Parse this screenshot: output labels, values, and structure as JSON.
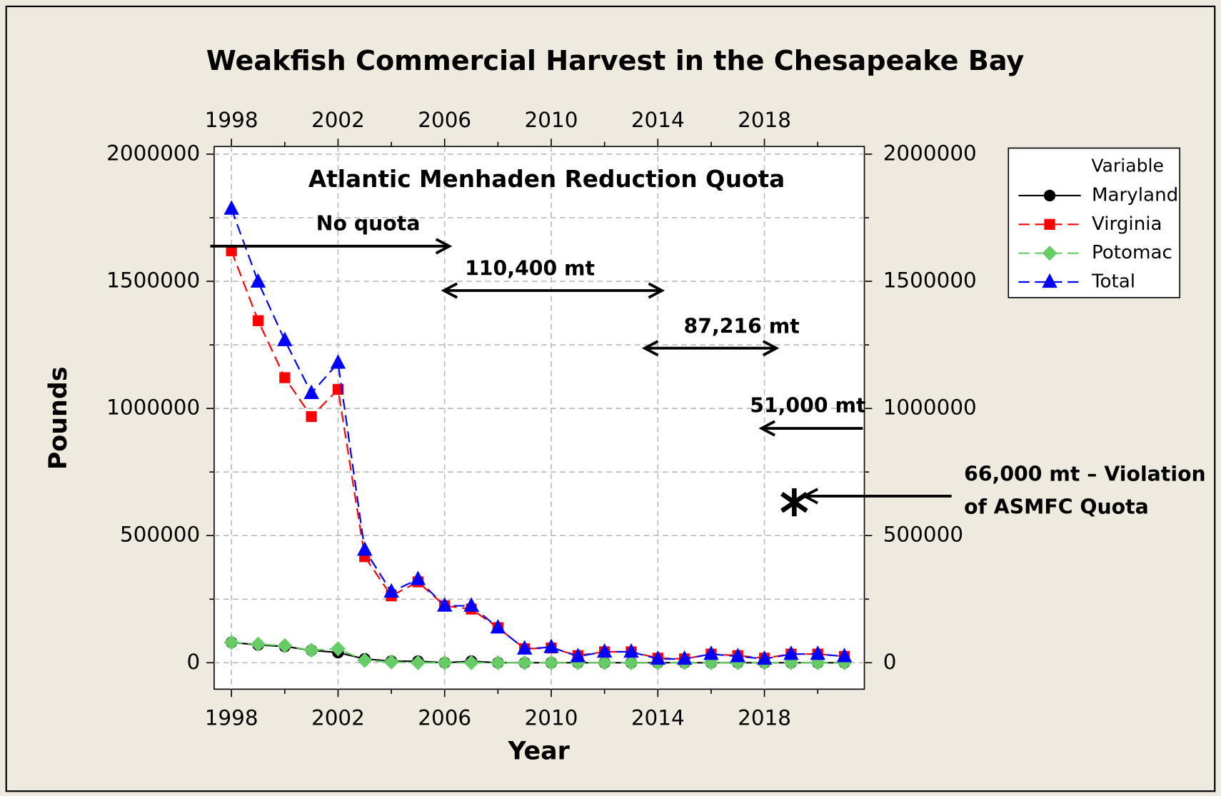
{
  "chart_data": {
    "type": "line",
    "title": "Weakfish Commercial Harvest in the Chesapeake Bay",
    "xlabel": "Year",
    "ylabel": "Pounds",
    "x": [
      1998,
      1999,
      2000,
      2001,
      2002,
      2003,
      2004,
      2005,
      2006,
      2007,
      2008,
      2009,
      2010,
      2011,
      2012,
      2013,
      2014,
      2015,
      2016,
      2017,
      2018,
      2019,
      2020,
      2021
    ],
    "series": [
      {
        "name": "Maryland",
        "color": "#000000",
        "marker": "circle",
        "dashed": false,
        "values": [
          80000,
          70000,
          64000,
          49000,
          40000,
          15000,
          6000,
          6000,
          0,
          6000,
          0,
          0,
          0,
          0,
          0,
          0,
          0,
          0,
          0,
          0,
          0,
          0,
          0,
          0
        ]
      },
      {
        "name": "Virginia",
        "color": "#ff0000",
        "marker": "square",
        "dashed": true,
        "values": [
          1620000,
          1345000,
          1121000,
          968000,
          1075000,
          417000,
          263000,
          318000,
          224000,
          211000,
          138000,
          55000,
          58000,
          28000,
          43000,
          43000,
          18000,
          15000,
          34000,
          28000,
          18000,
          34000,
          34000,
          25000
        ]
      },
      {
        "name": "Potomac",
        "color": "#66cc66",
        "marker": "diamond",
        "dashed": true,
        "values": [
          80000,
          73000,
          67000,
          49000,
          55000,
          9000,
          3000,
          0,
          0,
          0,
          0,
          0,
          0,
          0,
          0,
          0,
          0,
          0,
          0,
          0,
          0,
          0,
          0,
          0
        ]
      },
      {
        "name": "Total",
        "color": "#0000ff",
        "marker": "triangle",
        "dashed": true,
        "values": [
          1785000,
          1498000,
          1268000,
          1060000,
          1179000,
          444000,
          279000,
          328000,
          224000,
          224000,
          138000,
          55000,
          61000,
          25000,
          43000,
          43000,
          15000,
          15000,
          34000,
          25000,
          15000,
          34000,
          34000,
          25000
        ]
      }
    ],
    "legend_title": "Variable",
    "legend": "outside-right",
    "xlim": [
      1997.35,
      2021.75
    ],
    "xticks": [
      1998,
      2002,
      2006,
      2010,
      2014,
      2018
    ],
    "xminor": [
      2000,
      2004,
      2008,
      2012,
      2016,
      2020
    ],
    "ylim": [
      -104000,
      2030000
    ],
    "yticks": [
      0,
      500000,
      1000000,
      1500000,
      2000000
    ],
    "yminor": [
      250000,
      750000,
      1250000,
      1750000
    ],
    "grid": true,
    "annotations": {
      "quota_title": "Atlantic Menhaden Reduction Quota",
      "no_quota": "No quota",
      "q1": "110,400  mt",
      "q2": "87,216 mt",
      "q3": "51,000 mt",
      "violation": [
        "66,000 mt – Violation",
        "of ASMFC Quota"
      ]
    }
  }
}
